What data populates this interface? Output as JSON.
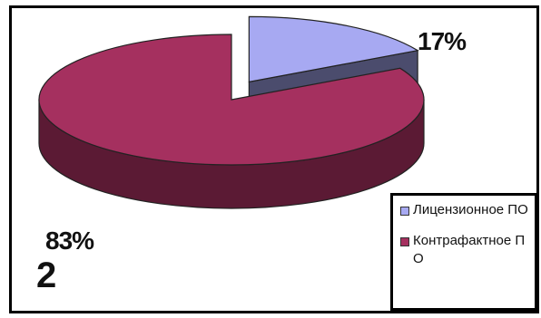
{
  "chart_data": {
    "type": "pie",
    "style": "3d-exploded",
    "categories": [
      "Лицензионное ПО",
      "Контрафактное ПО"
    ],
    "values": [
      17,
      83
    ],
    "labels": [
      "17%",
      "83%"
    ],
    "colors": [
      "#a7a9f2",
      "#a5305f"
    ],
    "legend": {
      "placement": "bottom-right",
      "entries": [
        "Лицензионное ПО",
        "Контрафактное ПО"
      ]
    },
    "panel_number": "2"
  }
}
